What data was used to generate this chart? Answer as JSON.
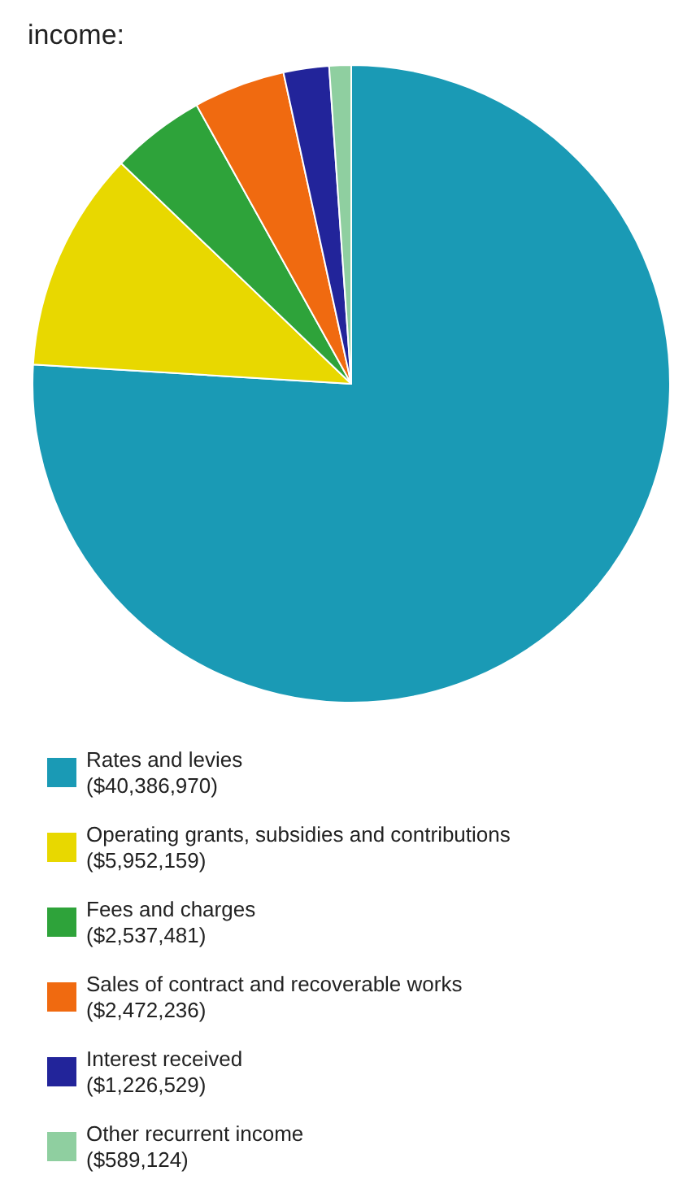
{
  "chart_data": {
    "type": "pie",
    "title": "income:",
    "categories": [
      "Rates and levies",
      "Operating grants, subsidies and contributions",
      "Fees and charges",
      "Sales of contract and recoverable works",
      "Interest received",
      "Other recurrent income"
    ],
    "values": [
      40386970,
      5952159,
      2537481,
      2472236,
      1226529,
      589124
    ],
    "value_labels": [
      "($40,386,970)",
      "($5,952,159)",
      "($2,537,481)",
      "($2,472,236)",
      "($1,226,529)",
      "($589,124)"
    ],
    "colors": [
      "#1a9ab5",
      "#e8d800",
      "#2ea33a",
      "#f06a10",
      "#22249a",
      "#8fcfa0"
    ],
    "legend": "bottom"
  }
}
